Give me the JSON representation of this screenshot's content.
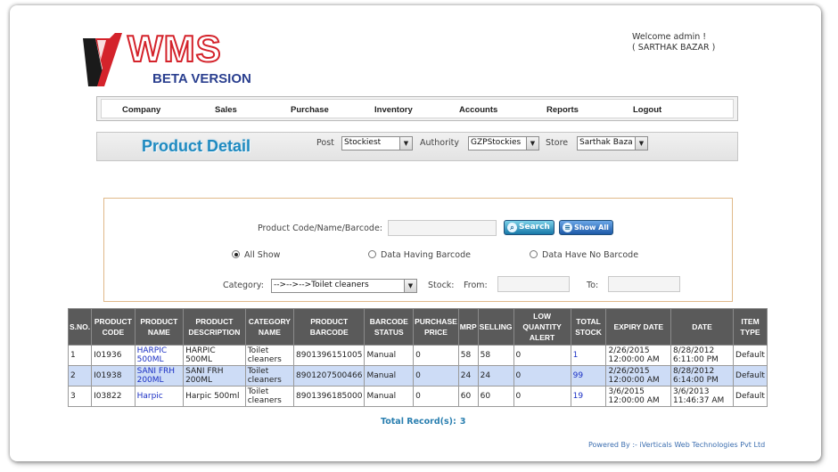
{
  "logo": {
    "mark": "WMS",
    "subtitle": "BETA VERSION"
  },
  "welcome": {
    "line1": "Welcome admin !",
    "line2": "( SARTHAK BAZAR )"
  },
  "nav": [
    "Company",
    "Sales",
    "Purchase",
    "Inventory",
    "Accounts",
    "Reports",
    "Logout"
  ],
  "title": "Product Detail",
  "filters": {
    "post_label": "Post",
    "post_value": "Stockiest",
    "authority_label": "Authority",
    "authority_value": "GZPStockies",
    "store_label": "Store",
    "store_value": "Sarthak Baza"
  },
  "search": {
    "code_label": "Product Code/Name/Barcode:",
    "code_value": "",
    "search_button": "Search",
    "showall_button": "Show All",
    "radio_all": "All Show",
    "radio_barcode": "Data Having Barcode",
    "radio_nobarcode": "Data Have No Barcode",
    "category_label": "Category:",
    "category_value": "-->-->-->Toilet cleaners",
    "stock_label": "Stock:",
    "from_label": "From:",
    "to_label": "To:"
  },
  "table": {
    "headers": [
      "S.NO.",
      "PRODUCT CODE",
      "PRODUCT NAME",
      "PRODUCT DESCRIPTION",
      "CATEGORY NAME",
      "PRODUCT BARCODE",
      "BARCODE STATUS",
      "PURCHASE PRICE",
      "MRP",
      "SELLING",
      "LOW QUANTITY ALERT",
      "TOTAL STOCK",
      "EXPIRY DATE",
      "DATE",
      "ITEM TYPE"
    ],
    "rows": [
      [
        "1",
        "I01936",
        "HARPIC 500ML",
        "HARPIC 500ML",
        "Toilet cleaners",
        "8901396151005",
        "Manual",
        "0",
        "58",
        "58",
        "0",
        "1",
        "2/26/2015 12:00:00 AM",
        "8/28/2012 6:11:00 PM",
        "Default"
      ],
      [
        "2",
        "I01938",
        "SANI FRH 200ML",
        "SANI FRH 200ML",
        "Toilet cleaners",
        "8901207500466",
        "Manual",
        "0",
        "24",
        "24",
        "0",
        "99",
        "2/26/2015 12:00:00 AM",
        "8/28/2012 6:14:00 PM",
        "Default"
      ],
      [
        "3",
        "I03822",
        "Harpic",
        "Harpic 500ml",
        "Toilet cleaners",
        "8901396185000",
        "Manual",
        "0",
        "60",
        "60",
        "0",
        "19",
        "3/6/2015 12:00:00 AM",
        "3/6/2013 11:46:37 AM",
        "Default"
      ]
    ]
  },
  "total": {
    "label": "Total Record(s):",
    "value": "3"
  },
  "footer": "Powered By :- iVerticals Web Technologies Pvt Ltd",
  "colors": {
    "accent": "#1f8ac0",
    "header_bg": "#5a5a5a",
    "alt_row": "#cddcf6",
    "link": "#1a2fc4",
    "logo_red": "#d4232b"
  }
}
